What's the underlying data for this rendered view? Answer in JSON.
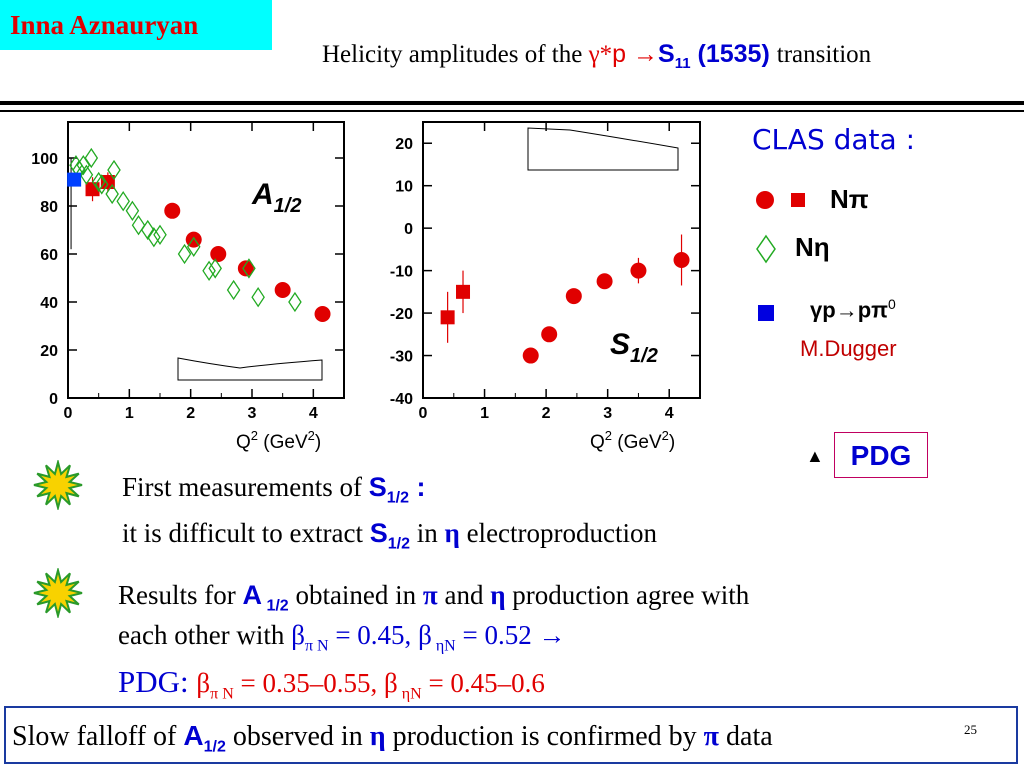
{
  "author": "Inna Aznauryan",
  "title": {
    "prefix": "Helicity amplitudes  of  the ",
    "gamma": "γ*",
    "p": "p ",
    "arrow": "→",
    "s": "S",
    "s_sub": "11",
    "mass": " (1535) ",
    "suffix": "transition"
  },
  "legend": {
    "heading": "CLAS data :",
    "npi": "Nπ",
    "neta": "Nη",
    "pi0_pre": "γp",
    "pi0_arrow": "→",
    "pi0_post": "pπ",
    "pi0_sup": "0",
    "dugger": "M.Dugger",
    "pdg_triangle": "▲",
    "pdg": "PDG"
  },
  "chart_data": [
    {
      "type": "scatter",
      "title": "A1/2",
      "title_main": "A",
      "title_sub": "1/2",
      "xlabel": "Q2 (GeV2)",
      "xlabel_parts": {
        "q": "Q",
        "q_sup": "2",
        "unit": " (GeV",
        "unit_sup": "2",
        "close": ")"
      },
      "xlim": [
        0,
        4.5
      ],
      "ylim": [
        0,
        115
      ],
      "xticks": [
        0,
        1,
        2,
        3,
        4
      ],
      "yticks": [
        0,
        20,
        40,
        60,
        80,
        100
      ],
      "series": [
        {
          "name": "Nπ",
          "marker": "circle",
          "color": "#e00000",
          "points": [
            [
              1.7,
              78,
              0
            ],
            [
              2.05,
              66,
              0
            ],
            [
              2.45,
              60,
              0
            ],
            [
              2.9,
              54,
              0
            ],
            [
              3.5,
              45,
              0
            ],
            [
              4.15,
              35,
              0
            ]
          ]
        },
        {
          "name": "Nπ",
          "marker": "square",
          "color": "#e00000",
          "points": [
            [
              0.4,
              87,
              5
            ],
            [
              0.65,
              90,
              4
            ]
          ]
        },
        {
          "name": "Nη",
          "marker": "diamond",
          "color": "#22aa22",
          "points": [
            [
              0.13,
              97,
              0
            ],
            [
              0.18,
              95,
              0
            ],
            [
              0.25,
              97,
              0
            ],
            [
              0.3,
              93,
              0
            ],
            [
              0.38,
              100,
              0
            ],
            [
              0.5,
              90,
              0
            ],
            [
              0.55,
              89,
              0
            ],
            [
              0.72,
              85,
              0
            ],
            [
              0.75,
              95,
              0
            ],
            [
              0.9,
              82,
              0
            ],
            [
              1.05,
              78,
              0
            ],
            [
              1.15,
              72,
              0
            ],
            [
              1.3,
              70,
              0
            ],
            [
              1.4,
              67,
              0
            ],
            [
              1.5,
              68,
              0
            ],
            [
              1.9,
              60,
              0
            ],
            [
              2.05,
              63,
              0
            ],
            [
              2.3,
              53,
              0
            ],
            [
              2.4,
              54,
              0
            ],
            [
              2.7,
              45,
              0
            ],
            [
              2.95,
              54,
              0
            ],
            [
              3.1,
              42,
              0
            ],
            [
              3.7,
              40,
              0
            ]
          ]
        },
        {
          "name": "γp→pπ0",
          "marker": "square",
          "color": "#0040ff",
          "points": [
            [
              0.1,
              91,
              0
            ]
          ]
        }
      ],
      "pdg": {
        "x_start": 0.05,
        "top": 100,
        "bottom": 62
      }
    },
    {
      "type": "scatter",
      "title": "S1/2",
      "title_main": "S",
      "title_sub": "1/2",
      "xlabel": "Q2 (GeV2)",
      "xlabel_parts": {
        "q": "Q",
        "q_sup": "2",
        "unit": " (GeV",
        "unit_sup": "2",
        "close": ")"
      },
      "xlim": [
        0,
        4.5
      ],
      "ylim": [
        -40,
        25
      ],
      "xticks": [
        0,
        1,
        2,
        3,
        4
      ],
      "yticks": [
        -40,
        -30,
        -20,
        -10,
        0,
        10,
        20
      ],
      "series": [
        {
          "name": "Nπ",
          "marker": "circle",
          "color": "#e00000",
          "points": [
            [
              1.75,
              -30,
              0
            ],
            [
              2.05,
              -25,
              0
            ],
            [
              2.45,
              -16,
              0
            ],
            [
              2.95,
              -12.5,
              0
            ],
            [
              3.5,
              -10,
              3
            ],
            [
              4.2,
              -7.5,
              6
            ]
          ]
        },
        {
          "name": "Nπ",
          "marker": "square",
          "color": "#e00000",
          "points": [
            [
              0.4,
              -21,
              6
            ],
            [
              0.65,
              -15,
              5
            ]
          ]
        }
      ]
    }
  ],
  "body": {
    "first_pre": "First  measurements of ",
    "first_s": "S",
    "first_sub": "1/2",
    "first_post": " :",
    "extract_pre": "it is difficult to extract ",
    "extract_s": "S",
    "extract_sub": "1/2",
    "extract_in": " in ",
    "extract_eta": "η",
    "extract_post": "  electroproduction",
    "results_pre": "Results for ",
    "results_a": "A",
    "results_sub": " 1/2",
    "results_mid": "  obtained in ",
    "results_pi": "π",
    "results_and": "  and ",
    "results_eta": "η",
    "results_post": " production agree with",
    "each_pre": "each other with  ",
    "beta_clas": "βπ N = 0.45, β ηN = 0.52",
    "beta_clas_parts": {
      "b1": "β",
      "s1": "π N",
      "v1": " = 0.45, ",
      "b2": "β",
      "s2": " ηN",
      "v2": " = 0.52",
      "arrow": "  →"
    },
    "pdg_label": "PDG: ",
    "beta_pdg_parts": {
      "b1": "β",
      "s1": "π N",
      "v1": " = 0.35–0.55, ",
      "b2": "β",
      "s2": " ηN",
      "v2": " = 0.45–0.6"
    }
  },
  "bottom": {
    "pre": "Slow falloff of ",
    "a": "A",
    "a_sub": "1/2",
    "mid": "  observed in ",
    "eta": "η",
    "post": " production is confirmed by ",
    "pi": "π",
    "end": " data"
  },
  "page_number": "25"
}
